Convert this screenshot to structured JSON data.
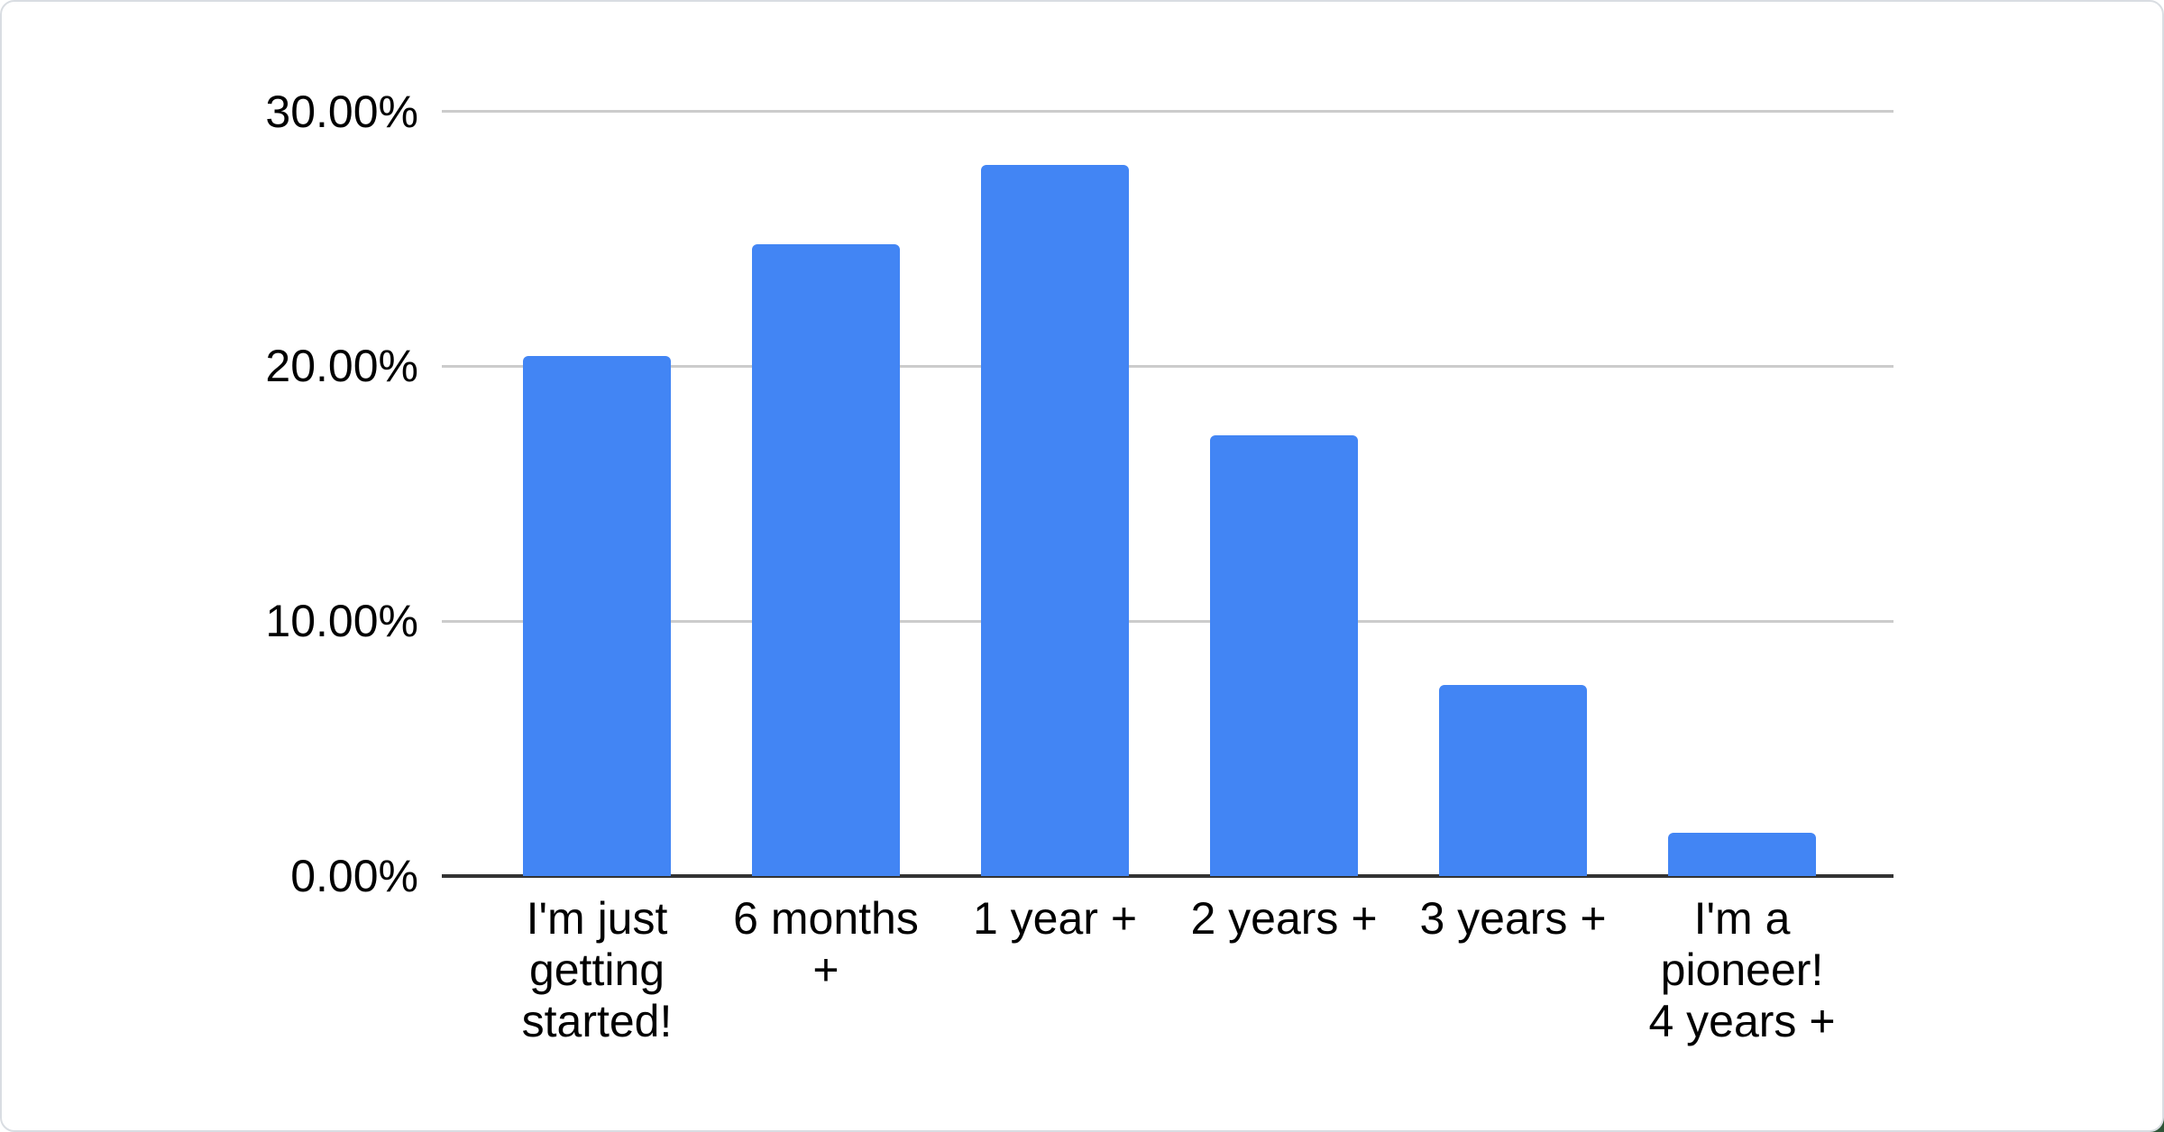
{
  "card": {
    "background": "#ffffff",
    "border_color": "#d9dde2",
    "corner_accent_color": "#2e5537"
  },
  "chart_data": {
    "type": "bar",
    "categories": [
      "I'm just\ngetting\nstarted!",
      "6 months\n+",
      "1 year +",
      "2 years +",
      "3 years +",
      "I'm a\npioneer!\n4 years +"
    ],
    "values": [
      20.4,
      24.8,
      27.9,
      17.3,
      7.5,
      1.7
    ],
    "series_name": "Responses",
    "value_format": "percent",
    "title": "",
    "xlabel": "",
    "ylabel": "",
    "ylim": [
      0,
      30
    ],
    "yticks": [
      {
        "value": 0,
        "label": "0.00%"
      },
      {
        "value": 10,
        "label": "10.00%"
      },
      {
        "value": 20,
        "label": "20.00%"
      },
      {
        "value": 30,
        "label": "30.00%"
      }
    ],
    "grid": true,
    "legend_position": "none",
    "bar_color": "#4285F4",
    "gridline_color": "#cccccc",
    "axis_line_color": "#333333",
    "text_color": "#000000"
  }
}
